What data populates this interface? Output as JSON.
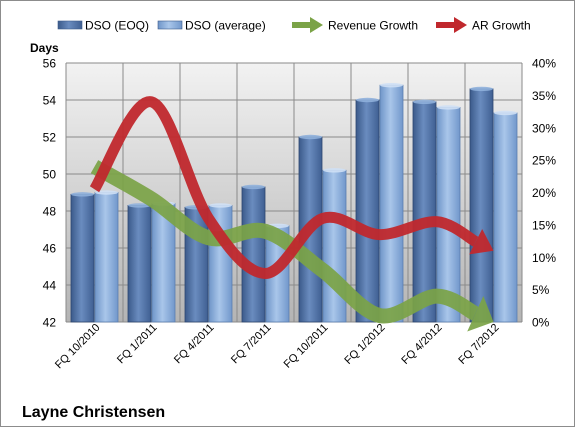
{
  "chart_data": {
    "type": "bar",
    "categories": [
      "FQ 10/2010",
      "FQ 1/2011",
      "FQ 4/2011",
      "FQ 7/2011",
      "FQ 10/2011",
      "FQ 1/2012",
      "FQ 4/2012",
      "FQ 7/2012"
    ],
    "series": [
      {
        "name": "DSO (EOQ)",
        "type": "bar",
        "axis": "left",
        "color": "#4a6a9c",
        "values": [
          48.9,
          48.3,
          48.2,
          49.3,
          52.0,
          54.0,
          53.9,
          54.6
        ]
      },
      {
        "name": "DSO (average)",
        "type": "bar",
        "axis": "left",
        "color": "#7ea2d2",
        "values": [
          49.0,
          48.4,
          48.3,
          47.2,
          50.2,
          54.8,
          53.6,
          53.3
        ]
      },
      {
        "name": "Revenue Growth",
        "type": "line",
        "axis": "right",
        "color": "#7ba347",
        "values": [
          0.24,
          0.19,
          0.13,
          0.14,
          0.08,
          0.01,
          0.04,
          0.0
        ]
      },
      {
        "name": "AR Growth",
        "type": "line",
        "axis": "right",
        "color": "#c0282d",
        "values": [
          0.205,
          0.34,
          0.16,
          0.075,
          0.16,
          0.135,
          0.155,
          0.11
        ]
      }
    ],
    "y_left": {
      "label": "Days",
      "min": 42,
      "max": 56,
      "step": 2,
      "ticks": [
        "42",
        "44",
        "46",
        "48",
        "50",
        "52",
        "54",
        "56"
      ]
    },
    "y_right": {
      "min": 0,
      "max": 0.4,
      "step": 0.05,
      "ticks": [
        "0%",
        "5%",
        "10%",
        "15%",
        "20%",
        "25%",
        "30%",
        "35%",
        "40%"
      ]
    },
    "grid": true,
    "legend_position": "top",
    "caption": "Layne Christensen"
  }
}
